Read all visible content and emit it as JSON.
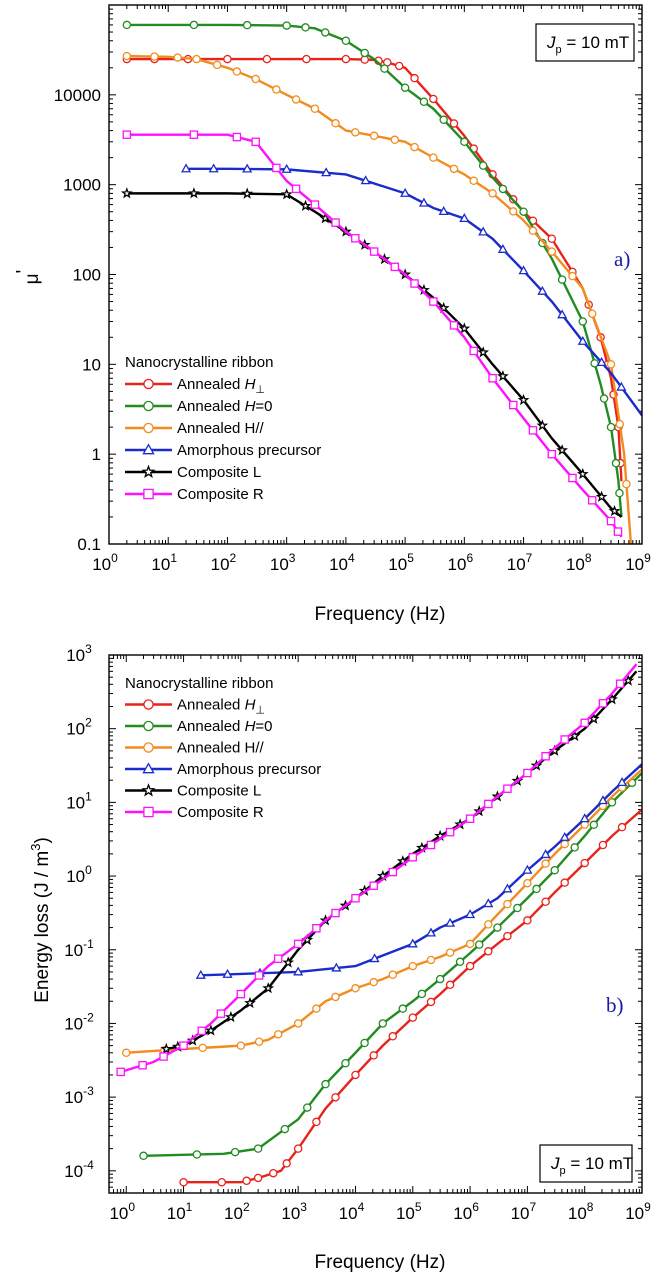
{
  "chart_data": [
    {
      "type": "line",
      "panel_label": "a)",
      "ylabel_main": "μ",
      "ylabel_sup": "'",
      "xlabel": "Frequency (Hz)",
      "xlim": [
        1,
        1000000000
      ],
      "ylim": [
        0.1,
        100000
      ],
      "xscale": "log",
      "yscale": "log",
      "x_tick_base": "10",
      "x_tick_exponents": [
        "0",
        "1",
        "2",
        "3",
        "4",
        "5",
        "6",
        "7",
        "8",
        "9"
      ],
      "y_ticks": [
        {
          "value": 0.1,
          "label": "0.1"
        },
        {
          "value": 1,
          "label": "1"
        },
        {
          "value": 10,
          "label": "10"
        },
        {
          "value": 100,
          "label": "100"
        },
        {
          "value": 1000,
          "label": "1000"
        },
        {
          "value": 10000,
          "label": "10000"
        }
      ],
      "annotation": {
        "sym": "J",
        "sub": "p",
        "rest": " = 10 mT",
        "placement": "top-right"
      },
      "legend": {
        "title": "Nanocrystalline ribbon",
        "placement": "bottom-left"
      },
      "series": [
        {
          "name_main": "Annealed ",
          "name_italic": "H",
          "name_sub": "⊥",
          "name_rest": "",
          "color": "#e8231c",
          "marker": "circle",
          "points": [
            [
              2,
              25000
            ],
            [
              10,
              25000
            ],
            [
              100,
              25000
            ],
            [
              1000,
              25000
            ],
            [
              10000,
              25000
            ],
            [
              30000,
              24500
            ],
            [
              50000,
              23000
            ],
            [
              100000,
              20000
            ],
            [
              300000,
              9000
            ],
            [
              1000000,
              3500
            ],
            [
              3000000,
              1300
            ],
            [
              10000000,
              500
            ],
            [
              30000000,
              250
            ],
            [
              100000000,
              70
            ],
            [
              200000000,
              20
            ],
            [
              300000000,
              7
            ],
            [
              400000000,
              2
            ],
            [
              450000000,
              0.5
            ]
          ]
        },
        {
          "name_main": "Annealed ",
          "name_italic": "H",
          "name_sub": "",
          "name_rest": "=0",
          "color": "#228b22",
          "marker": "circle",
          "points": [
            [
              2,
              60000
            ],
            [
              100,
              60000
            ],
            [
              1000,
              59000
            ],
            [
              3000,
              55000
            ],
            [
              10000,
              40000
            ],
            [
              30000,
              25000
            ],
            [
              100000,
              12000
            ],
            [
              300000,
              7000
            ],
            [
              1000000,
              3000
            ],
            [
              3000000,
              1200
            ],
            [
              10000000,
              500
            ],
            [
              30000000,
              150
            ],
            [
              100000000,
              30
            ],
            [
              200000000,
              6
            ],
            [
              300000000,
              2
            ],
            [
              400000000,
              0.5
            ],
            [
              450000000,
              0.2
            ]
          ]
        },
        {
          "name_main": "Annealed H//",
          "name_italic": "",
          "name_sub": "",
          "name_rest": "",
          "color": "#f28c1e",
          "marker": "circle",
          "points": [
            [
              2,
              27000
            ],
            [
              10,
              26500
            ],
            [
              30,
              25000
            ],
            [
              100,
              20000
            ],
            [
              300,
              15000
            ],
            [
              1000,
              10000
            ],
            [
              3000,
              7000
            ],
            [
              10000,
              4000
            ],
            [
              30000,
              3500
            ],
            [
              100000,
              3000
            ],
            [
              300000,
              2000
            ],
            [
              1000000,
              1300
            ],
            [
              3000000,
              800
            ],
            [
              10000000,
              400
            ],
            [
              30000000,
              180
            ],
            [
              100000000,
              70
            ],
            [
              300000000,
              10
            ],
            [
              500000000,
              1
            ],
            [
              650000000,
              0.1
            ]
          ]
        },
        {
          "name_main": "Amorphous precursor",
          "name_italic": "",
          "name_sub": "",
          "name_rest": "",
          "color": "#1a2ccc",
          "marker": "triangle",
          "points": [
            [
              20,
              1500
            ],
            [
              100,
              1500
            ],
            [
              1000,
              1480
            ],
            [
              10000,
              1300
            ],
            [
              100000,
              800
            ],
            [
              300000,
              550
            ],
            [
              1000000,
              420
            ],
            [
              3000000,
              250
            ],
            [
              10000000,
              110
            ],
            [
              30000000,
              50
            ],
            [
              100000000,
              18
            ],
            [
              300000000,
              8
            ],
            [
              1000000000,
              2.7
            ]
          ]
        },
        {
          "name_main": "Composite L",
          "name_italic": "",
          "name_sub": "",
          "name_rest": "",
          "color": "#000000",
          "marker": "star",
          "points": [
            [
              2,
              800
            ],
            [
              100,
              800
            ],
            [
              1000,
              780
            ],
            [
              3000,
              500
            ],
            [
              10000,
              300
            ],
            [
              30000,
              180
            ],
            [
              100000,
              100
            ],
            [
              300000,
              55
            ],
            [
              1000000,
              25
            ],
            [
              3000000,
              10
            ],
            [
              10000000,
              4
            ],
            [
              30000000,
              1.5
            ],
            [
              100000000,
              0.6
            ],
            [
              300000000,
              0.25
            ],
            [
              450000000,
              0.2
            ]
          ]
        },
        {
          "name_main": "Composite R",
          "name_italic": "",
          "name_sub": "",
          "name_rest": "",
          "color": "#ff10ff",
          "marker": "square",
          "points": [
            [
              2,
              3600
            ],
            [
              100,
              3600
            ],
            [
              300,
              3000
            ],
            [
              1000,
              1100
            ],
            [
              3000,
              600
            ],
            [
              10000,
              300
            ],
            [
              30000,
              180
            ],
            [
              100000,
              100
            ],
            [
              300000,
              50
            ],
            [
              1000000,
              20
            ],
            [
              3000000,
              7
            ],
            [
              10000000,
              2.5
            ],
            [
              30000000,
              1
            ],
            [
              100000000,
              0.4
            ],
            [
              300000000,
              0.18
            ],
            [
              450000000,
              0.12
            ]
          ]
        }
      ]
    },
    {
      "type": "line",
      "panel_label": "b)",
      "ylabel_main": "Energy loss (J / m",
      "ylabel_sup": "3",
      "ylabel_end": ")",
      "xlabel": "Frequency (Hz)",
      "xlim": [
        0.5,
        1000000000
      ],
      "ylim": [
        5e-05,
        1000
      ],
      "xscale": "log",
      "yscale": "log",
      "x_tick_base": "10",
      "x_tick_exponents": [
        "0",
        "1",
        "2",
        "3",
        "4",
        "5",
        "6",
        "7",
        "8",
        "9"
      ],
      "y_tick_base": "10",
      "y_tick_exponents": [
        "-4",
        "-3",
        "-2",
        "-1",
        "0",
        "1",
        "2",
        "3"
      ],
      "annotation": {
        "sym": "J",
        "sub": "p",
        "rest": " = 10 mT",
        "placement": "bottom-right"
      },
      "legend": {
        "title": "Nanocrystalline ribbon",
        "placement": "top-left"
      },
      "series": [
        {
          "name_main": "Annealed ",
          "name_italic": "H",
          "name_sub": "⊥",
          "name_rest": "",
          "color": "#e8231c",
          "marker": "circle",
          "points": [
            [
              10,
              7e-05
            ],
            [
              100,
              7e-05
            ],
            [
              200,
              8e-05
            ],
            [
              500,
              0.0001
            ],
            [
              1000,
              0.0002
            ],
            [
              3000,
              0.0007
            ],
            [
              10000,
              0.002
            ],
            [
              30000,
              0.005
            ],
            [
              100000,
              0.012
            ],
            [
              300000,
              0.025
            ],
            [
              1000000,
              0.06
            ],
            [
              3000000,
              0.12
            ],
            [
              10000000,
              0.25
            ],
            [
              30000000,
              0.6
            ],
            [
              100000000,
              1.5
            ],
            [
              300000000,
              3.5
            ],
            [
              1000000000,
              8
            ]
          ]
        },
        {
          "name_main": "Annealed ",
          "name_italic": "H",
          "name_sub": "",
          "name_rest": "=0",
          "color": "#228b22",
          "marker": "circle",
          "points": [
            [
              2,
              0.00016
            ],
            [
              50,
              0.00017
            ],
            [
              200,
              0.0002
            ],
            [
              1000,
              0.0005
            ],
            [
              3000,
              0.0015
            ],
            [
              10000,
              0.004
            ],
            [
              30000,
              0.01
            ],
            [
              100000,
              0.02
            ],
            [
              300000,
              0.04
            ],
            [
              1000000,
              0.09
            ],
            [
              3000000,
              0.2
            ],
            [
              10000000,
              0.5
            ],
            [
              30000000,
              1.2
            ],
            [
              100000000,
              3.5
            ],
            [
              300000000,
              10
            ],
            [
              1000000000,
              25
            ]
          ]
        },
        {
          "name_main": "Annealed H//",
          "name_italic": "",
          "name_sub": "",
          "name_rest": "",
          "color": "#f28c1e",
          "marker": "circle",
          "points": [
            [
              1,
              0.004
            ],
            [
              10,
              0.0045
            ],
            [
              100,
              0.005
            ],
            [
              300,
              0.006
            ],
            [
              1000,
              0.01
            ],
            [
              3000,
              0.02
            ],
            [
              10000,
              0.03
            ],
            [
              30000,
              0.04
            ],
            [
              100000,
              0.06
            ],
            [
              300000,
              0.08
            ],
            [
              1000000,
              0.12
            ],
            [
              3000000,
              0.3
            ],
            [
              10000000,
              0.8
            ],
            [
              30000000,
              2
            ],
            [
              100000000,
              5
            ],
            [
              300000000,
              12
            ],
            [
              1000000000,
              28
            ]
          ]
        },
        {
          "name_main": "Amorphous precursor",
          "name_italic": "",
          "name_sub": "",
          "name_rest": "",
          "color": "#1a2ccc",
          "marker": "triangle",
          "points": [
            [
              20,
              0.045
            ],
            [
              100,
              0.047
            ],
            [
              1000,
              0.05
            ],
            [
              10000,
              0.06
            ],
            [
              100000,
              0.12
            ],
            [
              300000,
              0.2
            ],
            [
              1000000,
              0.3
            ],
            [
              3000000,
              0.5
            ],
            [
              10000000,
              1.2
            ],
            [
              30000000,
              2.5
            ],
            [
              100000000,
              6
            ],
            [
              300000000,
              14
            ],
            [
              1000000000,
              33
            ]
          ]
        },
        {
          "name_main": "Composite L",
          "name_italic": "",
          "name_sub": "",
          "name_rest": "",
          "color": "#000000",
          "marker": "star",
          "points": [
            [
              5,
              0.0045
            ],
            [
              10,
              0.005
            ],
            [
              30,
              0.008
            ],
            [
              100,
              0.015
            ],
            [
              300,
              0.03
            ],
            [
              1000,
              0.1
            ],
            [
              3000,
              0.25
            ],
            [
              10000,
              0.5
            ],
            [
              30000,
              1
            ],
            [
              100000,
              2
            ],
            [
              300000,
              3.5
            ],
            [
              1000000,
              6
            ],
            [
              3000000,
              12
            ],
            [
              10000000,
              25
            ],
            [
              30000000,
              50
            ],
            [
              100000000,
              100
            ],
            [
              300000000,
              250
            ],
            [
              800000000,
              600
            ]
          ]
        },
        {
          "name_main": "Composite R",
          "name_italic": "",
          "name_sub": "",
          "name_rest": "",
          "color": "#ff10ff",
          "marker": "square",
          "points": [
            [
              0.8,
              0.0022
            ],
            [
              3,
              0.003
            ],
            [
              10,
              0.005
            ],
            [
              30,
              0.01
            ],
            [
              100,
              0.025
            ],
            [
              300,
              0.06
            ],
            [
              1000,
              0.12
            ],
            [
              3000,
              0.25
            ],
            [
              10000,
              0.5
            ],
            [
              30000,
              0.9
            ],
            [
              100000,
              1.8
            ],
            [
              300000,
              3.2
            ],
            [
              1000000,
              6
            ],
            [
              3000000,
              12
            ],
            [
              10000000,
              25
            ],
            [
              30000000,
              55
            ],
            [
              100000000,
              120
            ],
            [
              300000000,
              300
            ],
            [
              800000000,
              750
            ]
          ]
        }
      ]
    }
  ]
}
